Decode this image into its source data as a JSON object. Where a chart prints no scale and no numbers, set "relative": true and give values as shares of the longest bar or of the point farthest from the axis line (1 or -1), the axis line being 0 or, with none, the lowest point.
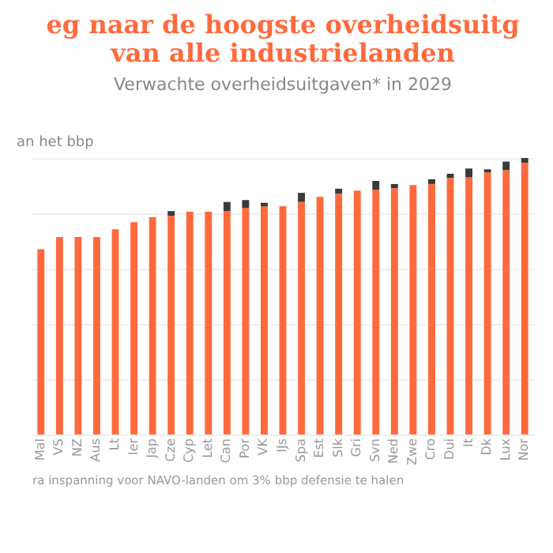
{
  "chart_data": {
    "type": "bar",
    "title": "eg naar de hoogste overheidsuitg\nvan alle industrielanden",
    "subtitle": "Verwachte overheidsuitgaven* in 2029",
    "ylabel": "an het bbp",
    "annotations": [
      "ra inspanning voor NAVO-landen om 3% bbp defensie te halen"
    ],
    "categories": [
      "Mal",
      "VS",
      "NZ",
      "Aus",
      "Lt",
      "Ier",
      "Jap",
      "Cze",
      "Cyp",
      "Let",
      "Can",
      "Por",
      "VK",
      "IJs",
      "Spa",
      "Est",
      "Slk",
      "Gri",
      "Svn",
      "Ned",
      "Zwe",
      "Cro",
      "Dui",
      "It",
      "Dk",
      "Lux",
      "Nor"
    ],
    "stacked": true,
    "relative": true,
    "grid": "y",
    "series": [
      {
        "color": "#ff6a3d",
        "values": [
          0.67,
          0.714,
          0.714,
          0.714,
          0.742,
          0.768,
          0.786,
          0.791,
          0.806,
          0.806,
          0.808,
          0.819,
          0.825,
          0.826,
          0.841,
          0.859,
          0.871,
          0.882,
          0.885,
          0.891,
          0.902,
          0.906,
          0.928,
          0.93,
          0.948,
          0.956,
          0.983
        ]
      },
      {
        "color": "#3a3a3a",
        "values": [
          null,
          null,
          null,
          null,
          null,
          null,
          null,
          0.017,
          null,
          null,
          0.033,
          0.029,
          0.013,
          null,
          0.033,
          null,
          0.018,
          null,
          0.032,
          0.015,
          null,
          0.017,
          0.015,
          0.032,
          0.011,
          0.031,
          0.017
        ]
      }
    ]
  }
}
